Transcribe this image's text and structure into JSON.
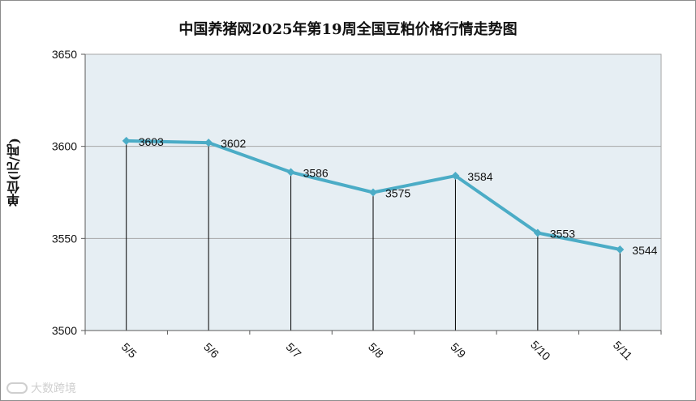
{
  "chart_data": {
    "type": "line",
    "title": "中国养猪网2025年第19周全国豆粕价格行情走势图",
    "ylabel": "单位(元/吨)",
    "xlabel": "",
    "categories": [
      "5/5",
      "5/6",
      "5/7",
      "5/8",
      "5/9",
      "5/10",
      "5/11"
    ],
    "values": [
      3603,
      3602,
      3586,
      3575,
      3584,
      3553,
      3544
    ],
    "data_labels": [
      "3603",
      "3602",
      "3586",
      "3575",
      "3584",
      "3553",
      "3544"
    ],
    "ylim": [
      3500,
      3650
    ],
    "yticks": [
      "3500",
      "3550",
      "3600",
      "3650"
    ],
    "grid": true,
    "drop_lines": true,
    "colors": {
      "line": "#4bacc6",
      "plot_bg": "#e6eef3",
      "grid": "#a6a6a6"
    }
  },
  "watermark": {
    "text": "大数跨境"
  }
}
